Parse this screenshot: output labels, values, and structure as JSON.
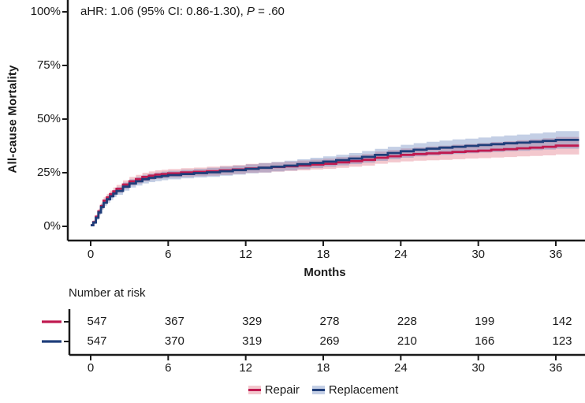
{
  "colors": {
    "axis": "#1a1a1a",
    "text": "#1a1a1a",
    "repair_line": "#c01a50",
    "repair_band": "rgba(217,84,102,0.32)",
    "replacement_line": "#1f3e7a",
    "replacement_band": "rgba(75,110,175,0.33)"
  },
  "chart_data": {
    "type": "line",
    "subtype": "kaplan-meier-step-with-confidence-bands",
    "title": "",
    "annotation": {
      "prefix": "aHR: 1.06 (95% CI: 0.86-1.30), ",
      "italic": "P",
      "suffix": " = .60"
    },
    "ylabel": "All-cause Mortality",
    "xlabel": "Months",
    "xlim": [
      0,
      38
    ],
    "ylim": [
      0,
      100
    ],
    "xticks": [
      0,
      6,
      12,
      18,
      24,
      30,
      36
    ],
    "yticks": [
      100,
      75,
      50,
      25,
      0
    ],
    "ytick_format": "percent",
    "grid": false,
    "legend_position": "bottom-center",
    "series": [
      {
        "name": "Repair",
        "color": "#c01a50",
        "band_color": "rgba(217,84,102,0.32)",
        "points_format": "[month, mortality_pct, ci_halfwidth_pct]",
        "points": [
          [
            0,
            0.5,
            0.5
          ],
          [
            0.2,
            2,
            0.8
          ],
          [
            0.4,
            4.5,
            1
          ],
          [
            0.6,
            7,
            1.2
          ],
          [
            0.8,
            9.5,
            1.4
          ],
          [
            1,
            12,
            1.5
          ],
          [
            1.25,
            13.5,
            1.6
          ],
          [
            1.5,
            15,
            1.7
          ],
          [
            1.75,
            16.3,
            1.8
          ],
          [
            2,
            17.5,
            1.8
          ],
          [
            2.5,
            19.5,
            1.9
          ],
          [
            3,
            21,
            2
          ],
          [
            3.5,
            22,
            2
          ],
          [
            4,
            23,
            2
          ],
          [
            4.5,
            23.6,
            2
          ],
          [
            5,
            24.1,
            2
          ],
          [
            5.5,
            24.4,
            2
          ],
          [
            6,
            24.7,
            2
          ],
          [
            7,
            25.1,
            2
          ],
          [
            8,
            25.4,
            2
          ],
          [
            9,
            25.7,
            2.1
          ],
          [
            10,
            26.1,
            2.1
          ],
          [
            11,
            26.5,
            2.1
          ],
          [
            12,
            27,
            2.1
          ],
          [
            13,
            27.3,
            2.2
          ],
          [
            14,
            27.7,
            2.2
          ],
          [
            15,
            28,
            2.2
          ],
          [
            16,
            28.4,
            2.3
          ],
          [
            17,
            28.8,
            2.3
          ],
          [
            18,
            29.2,
            2.4
          ],
          [
            19,
            29.8,
            2.5
          ],
          [
            20,
            30.4,
            2.6
          ],
          [
            21,
            31,
            2.7
          ],
          [
            22,
            32,
            2.8
          ],
          [
            23,
            32.7,
            2.9
          ],
          [
            24,
            33.3,
            3
          ],
          [
            25,
            33.7,
            3.1
          ],
          [
            26,
            34,
            3.2
          ],
          [
            27,
            34.3,
            3.3
          ],
          [
            28,
            34.7,
            3.4
          ],
          [
            29,
            35,
            3.4
          ],
          [
            30,
            35.3,
            3.5
          ],
          [
            31,
            35.7,
            3.6
          ],
          [
            32,
            36,
            3.7
          ],
          [
            33,
            36.4,
            3.8
          ],
          [
            34,
            36.7,
            3.9
          ],
          [
            35,
            37.1,
            4
          ],
          [
            36,
            37.6,
            4.1
          ],
          [
            37.8,
            37.6,
            4.1
          ]
        ]
      },
      {
        "name": "Replacement",
        "color": "#1f3e7a",
        "band_color": "rgba(75,110,175,0.33)",
        "points_format": "[month, mortality_pct, ci_halfwidth_pct]",
        "points": [
          [
            0,
            0.5,
            0.5
          ],
          [
            0.2,
            1.8,
            0.7
          ],
          [
            0.4,
            4,
            1
          ],
          [
            0.6,
            6.5,
            1.2
          ],
          [
            0.8,
            9,
            1.3
          ],
          [
            1,
            11,
            1.5
          ],
          [
            1.25,
            12.6,
            1.6
          ],
          [
            1.5,
            14,
            1.7
          ],
          [
            1.75,
            15.3,
            1.7
          ],
          [
            2,
            16.5,
            1.8
          ],
          [
            2.5,
            18.5,
            1.9
          ],
          [
            3,
            20,
            1.9
          ],
          [
            3.5,
            21,
            2
          ],
          [
            4,
            22,
            2
          ],
          [
            4.5,
            22.6,
            2
          ],
          [
            5,
            23.1,
            2
          ],
          [
            5.5,
            23.5,
            2
          ],
          [
            6,
            23.9,
            2
          ],
          [
            7,
            24.4,
            2
          ],
          [
            8,
            24.8,
            2
          ],
          [
            9,
            25.2,
            2.1
          ],
          [
            10,
            25.7,
            2.1
          ],
          [
            11,
            26.2,
            2.1
          ],
          [
            12,
            26.8,
            2.1
          ],
          [
            13,
            27.3,
            2.2
          ],
          [
            14,
            27.8,
            2.2
          ],
          [
            15,
            28.3,
            2.3
          ],
          [
            16,
            29,
            2.3
          ],
          [
            17,
            29.6,
            2.4
          ],
          [
            18,
            30.2,
            2.4
          ],
          [
            19,
            30.9,
            2.5
          ],
          [
            20,
            31.6,
            2.6
          ],
          [
            21,
            32.4,
            2.7
          ],
          [
            22,
            33.3,
            2.8
          ],
          [
            23,
            34.2,
            2.9
          ],
          [
            24,
            35,
            3
          ],
          [
            25,
            35.7,
            3.1
          ],
          [
            26,
            36.2,
            3.2
          ],
          [
            27,
            36.7,
            3.3
          ],
          [
            28,
            37.1,
            3.4
          ],
          [
            29,
            37.5,
            3.4
          ],
          [
            30,
            37.9,
            3.5
          ],
          [
            31,
            38.3,
            3.6
          ],
          [
            32,
            38.7,
            3.7
          ],
          [
            33,
            39,
            3.8
          ],
          [
            34,
            39.4,
            3.9
          ],
          [
            35,
            39.8,
            4
          ],
          [
            36,
            40.3,
            4.1
          ],
          [
            37.8,
            40.3,
            4.1
          ]
        ]
      }
    ],
    "number_at_risk": {
      "title": "Number at risk",
      "times": [
        0,
        6,
        12,
        18,
        24,
        30,
        36
      ],
      "rows": [
        {
          "name": "Repair",
          "counts": [
            547,
            367,
            329,
            278,
            228,
            199,
            142
          ]
        },
        {
          "name": "Replacement",
          "counts": [
            547,
            370,
            319,
            269,
            210,
            166,
            123
          ]
        }
      ]
    }
  }
}
